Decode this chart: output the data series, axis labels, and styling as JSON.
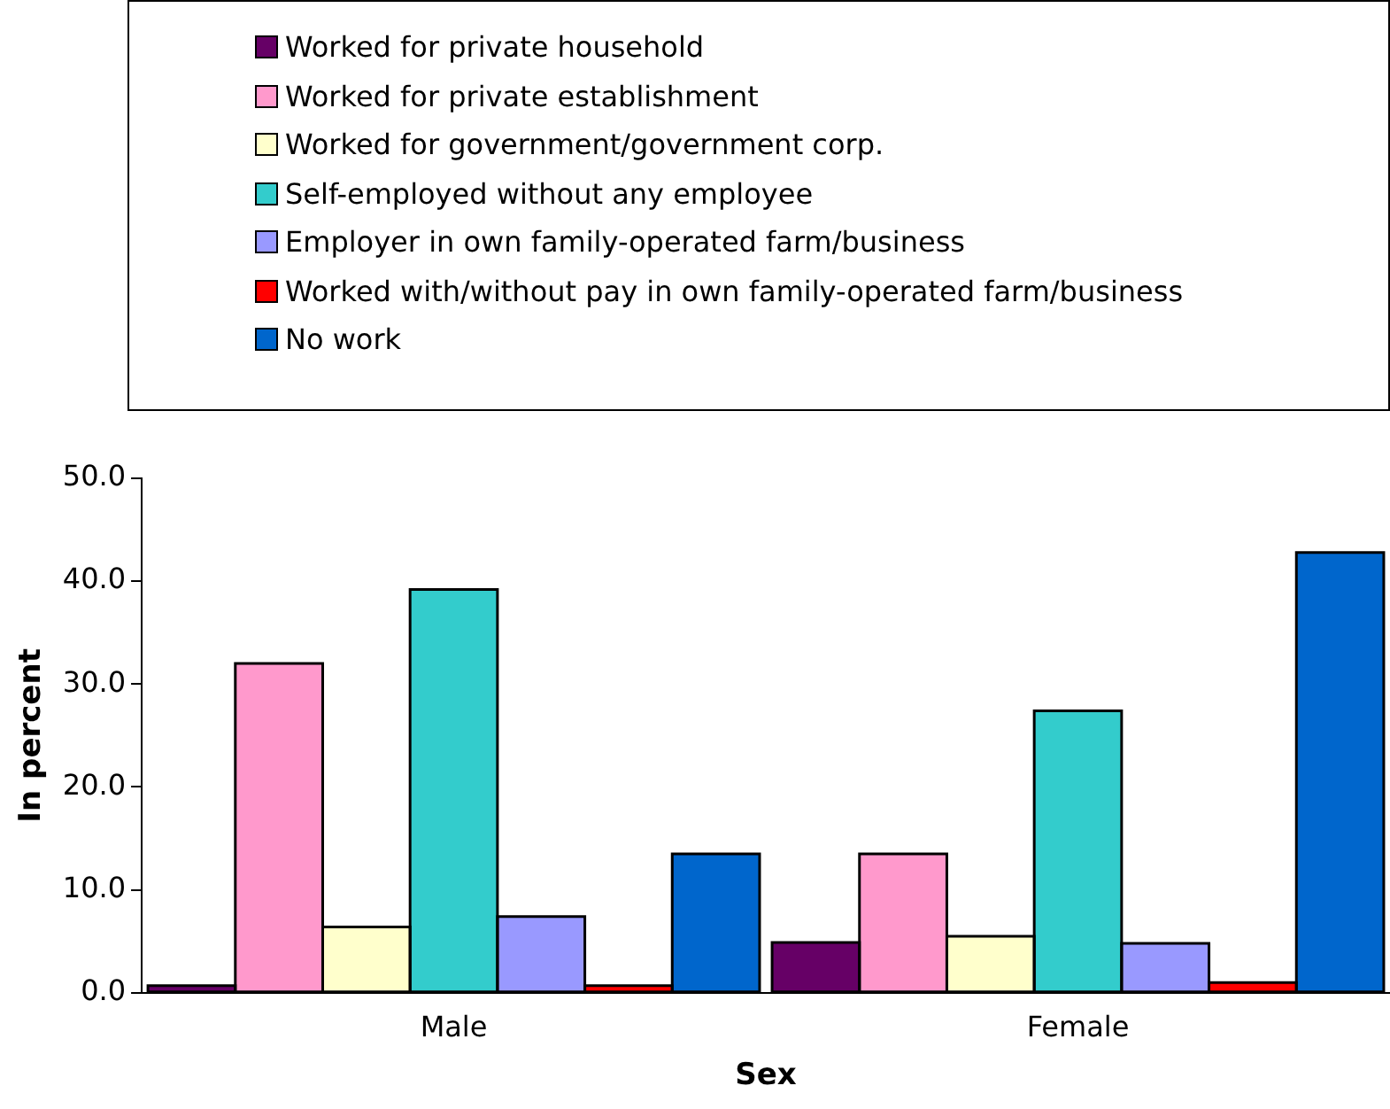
{
  "chart_data": {
    "type": "bar",
    "xlabel": "Sex",
    "ylabel": "In percent",
    "categories": [
      "Male",
      "Female"
    ],
    "series": [
      {
        "name": "Worked for private household",
        "color": "#660066",
        "values": [
          0.7,
          4.9
        ]
      },
      {
        "name": "Worked for private establishment",
        "color": "#ff99cc",
        "values": [
          32.0,
          13.5
        ]
      },
      {
        "name": "Worked for government/government corp.",
        "color": "#ffffcc",
        "values": [
          6.4,
          5.5
        ]
      },
      {
        "name": "Self-employed without any employee",
        "color": "#33cccc",
        "values": [
          39.2,
          27.4
        ]
      },
      {
        "name": "Employer in own family-operated farm/business",
        "color": "#9999ff",
        "values": [
          7.4,
          4.8
        ]
      },
      {
        "name": "Worked with/without pay in own family-operated farm/business",
        "color": "#ff0000",
        "values": [
          0.7,
          1.0
        ]
      },
      {
        "name": "No work",
        "color": "#0066cc",
        "values": [
          13.5,
          42.8
        ]
      }
    ],
    "ylim": [
      0,
      50
    ],
    "yticks": [
      {
        "value": 0,
        "label": "0.0"
      },
      {
        "value": 10,
        "label": "10.0"
      },
      {
        "value": 20,
        "label": "20.0"
      },
      {
        "value": 30,
        "label": "30.0"
      },
      {
        "value": 40,
        "label": "40.0"
      },
      {
        "value": 50,
        "label": "50.0"
      }
    ],
    "grid": false,
    "legend": "top"
  }
}
